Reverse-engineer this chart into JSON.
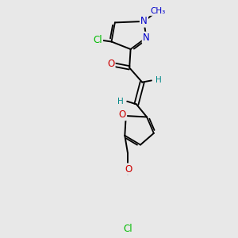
{
  "background_color": "#e8e8e8",
  "bond_color": "#000000",
  "atom_colors": {
    "Cl": "#00bb00",
    "N": "#0000cc",
    "O": "#cc0000",
    "C": "#000000",
    "H": "#008888"
  },
  "figsize": [
    3.0,
    3.0
  ],
  "dpi": 100
}
